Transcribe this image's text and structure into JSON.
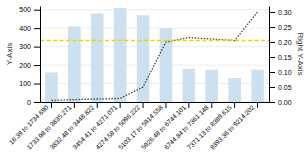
{
  "chart_data": {
    "type": "bar",
    "categories": [
      "16.39 to 1734.690",
      "1733.98 to 3835.271",
      "3832.48 to 3448.822",
      "3454.41 to 4271.071",
      "4274.58 to 5096.222",
      "5103.17 to 5914.558",
      "5926.48 to 6744.101",
      "6744.84 to 7361.148",
      "7371.13 to 8389.615",
      "8393.36 to 9214.202"
    ],
    "series": [
      {
        "type": "bar",
        "color": "#cce0f0",
        "values": [
          160,
          410,
          480,
          510,
          470,
          400,
          180,
          175,
          130,
          175
        ]
      },
      {
        "type": "line",
        "axis": "y2",
        "color": "#444444",
        "line_style": "dotted",
        "values": [
          0.005,
          0.008,
          0.01,
          0.012,
          0.05,
          0.2,
          0.215,
          0.21,
          0.205,
          0.3
        ]
      }
    ],
    "reference_lines": [
      {
        "value": 0.205,
        "axis": "y2",
        "color": "#e8d800",
        "line_style": "dashed"
      }
    ],
    "y_label": "Y-Axis",
    "y2_label": "Right Y-Axis",
    "ylim": [
      0,
      520
    ],
    "yticks": [
      0,
      100,
      200,
      300,
      400,
      500
    ],
    "y2lim": [
      0.0,
      0.32
    ],
    "y2ticks": [
      {
        "value": 0,
        "label": "0.00"
      },
      0.05,
      {
        "value": 0.1,
        "label": "0.10"
      },
      0.15,
      {
        "value": 0.2,
        "label": "0.20"
      },
      0.25,
      {
        "value": 0.3,
        "label": "0.30"
      }
    ],
    "grid": true
  }
}
